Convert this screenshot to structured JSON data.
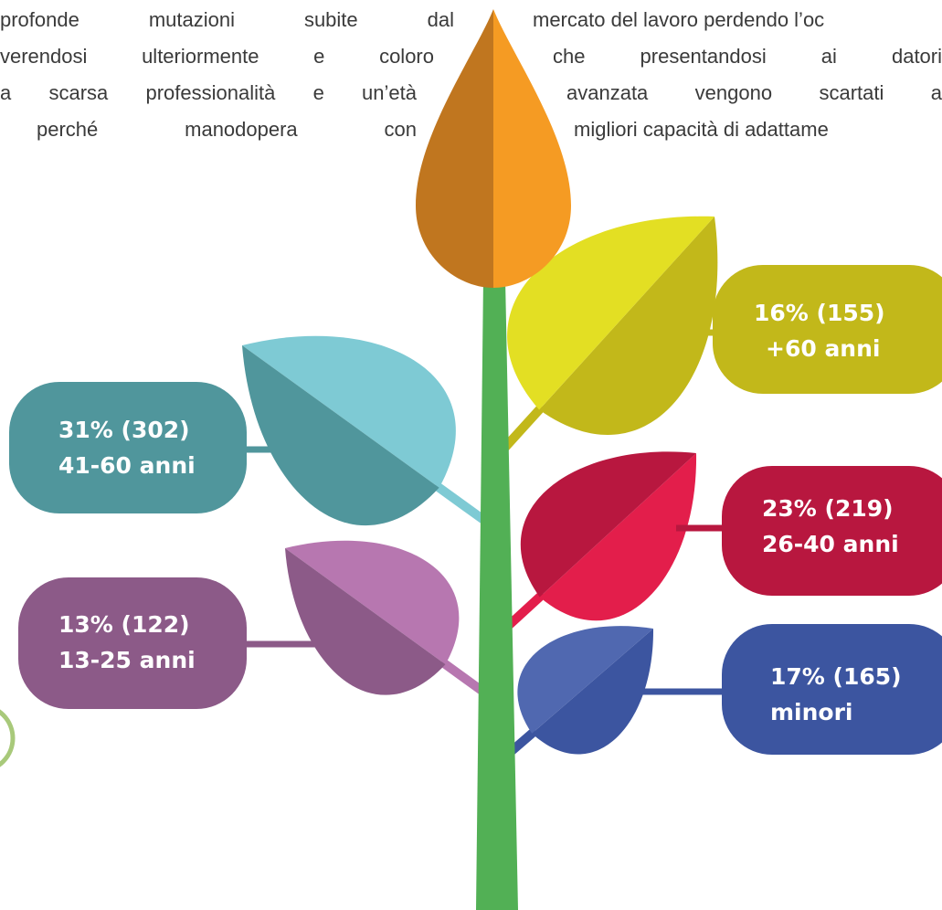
{
  "text_columns": {
    "left": [
      "profonde mutazioni subite dal",
      "verendosi ulteriormente e coloro",
      "a scarsa professionalità e un’età",
      "perché manodopera con"
    ],
    "right": [
      "mercato del lavoro perdendo l’oc",
      "che presentandosi ai datori",
      "avanzata vengono scartati a",
      "migliori capacità di adattame"
    ]
  },
  "labels": [
    {
      "share": "16% (155)",
      "group": "+60 anni"
    },
    {
      "share": "31% (302)",
      "group": "41-60 anni"
    },
    {
      "share": "23% (219)",
      "group": "26-40 anni"
    },
    {
      "share": "13% (122)",
      "group": "13-25 anni"
    },
    {
      "share": "17% (165)",
      "group": "minori"
    }
  ]
}
